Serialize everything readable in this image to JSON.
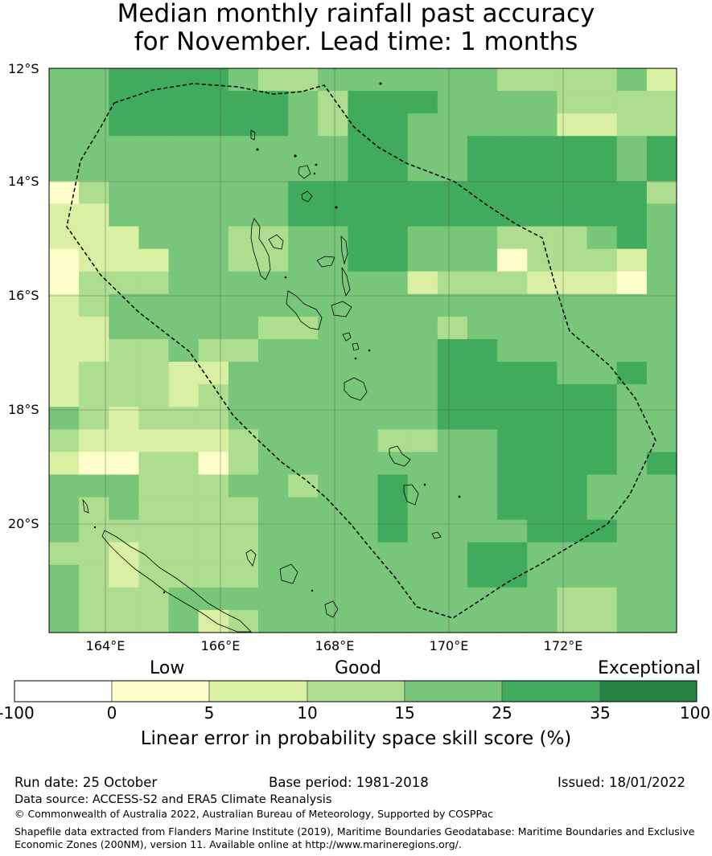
{
  "title": {
    "line1": "Median monthly rainfall past accuracy",
    "line2": "for November. Lead time: 1 months"
  },
  "map": {
    "lat_labels": [
      "12°S",
      "14°S",
      "16°S",
      "18°S",
      "20°S"
    ],
    "lon_labels": [
      "164°E",
      "166°E",
      "168°E",
      "170°E",
      "172°E"
    ],
    "grid": [
      [
        4,
        4,
        5,
        5,
        5,
        5,
        4,
        3,
        3,
        4,
        4,
        4,
        4,
        4,
        4,
        3,
        3,
        3,
        3,
        4,
        2
      ],
      [
        4,
        4,
        5,
        5,
        5,
        5,
        5,
        5,
        4,
        3,
        5,
        5,
        5,
        4,
        4,
        4,
        4,
        3,
        3,
        3,
        3
      ],
      [
        4,
        4,
        5,
        5,
        5,
        5,
        5,
        5,
        4,
        3,
        5,
        5,
        4,
        4,
        4,
        4,
        4,
        2,
        2,
        3,
        3
      ],
      [
        4,
        4,
        4,
        4,
        4,
        4,
        4,
        4,
        4,
        4,
        5,
        5,
        4,
        4,
        5,
        5,
        5,
        5,
        5,
        4,
        5
      ],
      [
        4,
        4,
        4,
        4,
        4,
        4,
        4,
        4,
        4,
        4,
        5,
        5,
        4,
        4,
        5,
        5,
        5,
        5,
        5,
        4,
        5
      ],
      [
        1,
        3,
        4,
        4,
        4,
        4,
        4,
        4,
        5,
        5,
        5,
        5,
        5,
        5,
        5,
        5,
        5,
        5,
        5,
        5,
        3
      ],
      [
        2,
        2,
        4,
        4,
        4,
        4,
        4,
        4,
        5,
        5,
        5,
        5,
        5,
        5,
        5,
        5,
        5,
        5,
        5,
        5,
        4
      ],
      [
        2,
        2,
        2,
        4,
        4,
        4,
        3,
        3,
        4,
        4,
        5,
        5,
        4,
        4,
        4,
        3,
        3,
        3,
        4,
        5,
        4
      ],
      [
        1,
        2,
        2,
        2,
        4,
        4,
        3,
        3,
        4,
        4,
        5,
        5,
        4,
        4,
        4,
        1,
        3,
        3,
        3,
        2,
        4
      ],
      [
        1,
        3,
        3,
        3,
        4,
        4,
        4,
        4,
        4,
        4,
        4,
        4,
        2,
        3,
        3,
        3,
        2,
        2,
        2,
        1,
        4
      ],
      [
        2,
        3,
        4,
        4,
        4,
        4,
        4,
        4,
        4,
        4,
        4,
        4,
        4,
        4,
        4,
        4,
        4,
        4,
        4,
        4,
        4
      ],
      [
        2,
        2,
        4,
        4,
        4,
        4,
        4,
        3,
        3,
        4,
        4,
        4,
        4,
        3,
        4,
        4,
        4,
        4,
        4,
        4,
        4
      ],
      [
        2,
        2,
        3,
        3,
        4,
        3,
        3,
        4,
        4,
        4,
        4,
        4,
        4,
        5,
        5,
        4,
        4,
        4,
        4,
        4,
        4
      ],
      [
        2,
        3,
        3,
        3,
        2,
        2,
        4,
        4,
        4,
        4,
        4,
        4,
        4,
        5,
        5,
        5,
        5,
        4,
        4,
        5,
        4
      ],
      [
        2,
        3,
        3,
        3,
        2,
        3,
        4,
        4,
        4,
        4,
        4,
        4,
        4,
        5,
        5,
        5,
        5,
        5,
        5,
        4,
        4
      ],
      [
        4,
        3,
        2,
        3,
        3,
        3,
        4,
        4,
        4,
        4,
        4,
        4,
        4,
        5,
        5,
        5,
        5,
        5,
        5,
        4,
        4
      ],
      [
        3,
        2,
        2,
        2,
        2,
        2,
        3,
        4,
        4,
        4,
        4,
        3,
        3,
        4,
        4,
        5,
        5,
        5,
        5,
        4,
        4
      ],
      [
        2,
        1,
        1,
        3,
        3,
        1,
        3,
        4,
        4,
        4,
        4,
        4,
        4,
        4,
        4,
        5,
        5,
        5,
        5,
        4,
        5
      ],
      [
        4,
        4,
        4,
        3,
        3,
        3,
        4,
        4,
        3,
        4,
        4,
        5,
        4,
        4,
        4,
        5,
        5,
        5,
        4,
        4,
        4
      ],
      [
        4,
        3,
        4,
        3,
        3,
        3,
        3,
        4,
        4,
        4,
        4,
        5,
        4,
        4,
        4,
        5,
        5,
        5,
        4,
        4,
        4
      ],
      [
        4,
        3,
        3,
        3,
        3,
        3,
        3,
        4,
        4,
        4,
        4,
        5,
        4,
        4,
        4,
        4,
        5,
        5,
        5,
        4,
        4
      ],
      [
        3,
        3,
        2,
        3,
        3,
        3,
        3,
        4,
        4,
        4,
        4,
        4,
        4,
        4,
        5,
        5,
        4,
        4,
        4,
        4,
        4
      ],
      [
        4,
        3,
        2,
        3,
        3,
        3,
        3,
        4,
        4,
        4,
        4,
        4,
        4,
        4,
        5,
        5,
        4,
        4,
        4,
        4,
        4
      ],
      [
        4,
        3,
        3,
        3,
        4,
        4,
        4,
        4,
        4,
        4,
        4,
        4,
        4,
        4,
        4,
        4,
        4,
        3,
        3,
        4,
        4
      ],
      [
        4,
        3,
        3,
        3,
        4,
        2,
        3,
        4,
        4,
        4,
        4,
        4,
        4,
        4,
        4,
        4,
        4,
        3,
        3,
        4,
        4
      ]
    ]
  },
  "legend": {
    "categories": [
      "Low",
      "Good",
      "Exceptional"
    ],
    "ticks": [
      "-100",
      "0",
      "5",
      "10",
      "15",
      "25",
      "35",
      "100"
    ],
    "colors": [
      "#ffffff",
      "#ffffcc",
      "#d9f0a3",
      "#addd8e",
      "#78c679",
      "#41ab5d",
      "#238443"
    ],
    "title": "Linear error in probability space skill score (%)"
  },
  "footer": {
    "run_date": "Run date: 25 October",
    "base_period": "Base period: 1981-2018",
    "issued": "Issued: 18/01/2022",
    "data_source": "Data source: ACCESS-S2 and ERA5 Climate Reanalysis",
    "copyright": "© Commonwealth of Australia 2022, Australian Bureau of Meteorology, Supported by COSPPac",
    "shapefile_line1": "Shapefile data extracted from Flanders Marine Institute (2019), Maritime Boundaries Geodatabase: Maritime Boundaries and Exclusive",
    "shapefile_line2": "Economic Zones (200NM), version 11. Available online at http://www.marineregions.org/."
  }
}
